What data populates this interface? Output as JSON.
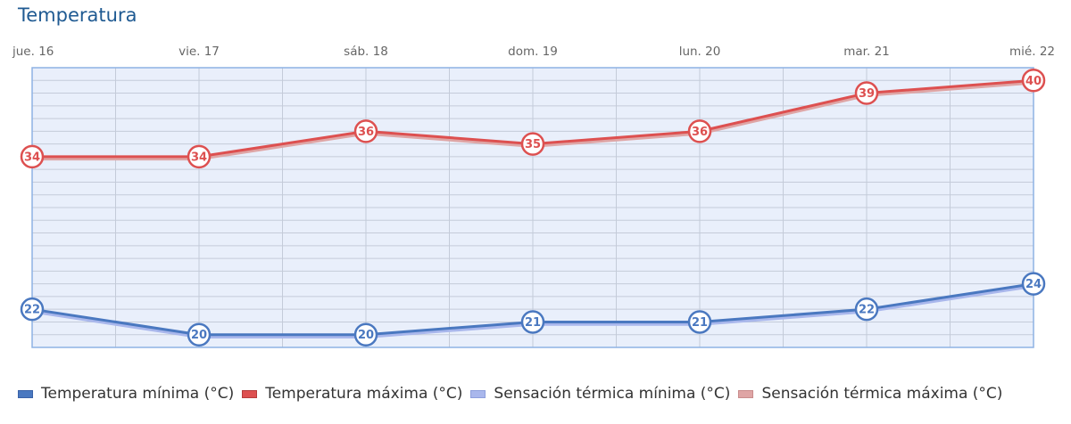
{
  "title": "Temperatura",
  "chart_data": {
    "type": "line",
    "categories": [
      "jue. 16",
      "vie. 17",
      "sáb. 18",
      "dom. 19",
      "lun. 20",
      "mar. 21",
      "mié. 22"
    ],
    "ylim": [
      19,
      41
    ],
    "grid": true,
    "legend_position": "bottom-left",
    "series": [
      {
        "name": "Temperatura mínima (°C)",
        "values": [
          22,
          20,
          20,
          21,
          21,
          22,
          24
        ],
        "color": "#4a78c0",
        "marker": true
      },
      {
        "name": "Temperatura máxima (°C)",
        "values": [
          34,
          34,
          36,
          35,
          36,
          39,
          40
        ],
        "color": "#dd5050",
        "marker": true
      },
      {
        "name": "Sensación térmica mínima (°C)",
        "values": [
          22,
          20,
          20,
          21,
          21,
          22,
          24
        ],
        "color": "#a9b7ec",
        "marker": false
      },
      {
        "name": "Sensación térmica máxima (°C)",
        "values": [
          34,
          34,
          36,
          35,
          36,
          39,
          40
        ],
        "color": "#dfa5a5",
        "marker": false
      }
    ]
  },
  "colors": {
    "plot_background": "#e9effb",
    "plot_border": "#8eb2e4",
    "grid": "#c4cbd9",
    "tick_label": "#666666",
    "title": "#1f5a92"
  }
}
